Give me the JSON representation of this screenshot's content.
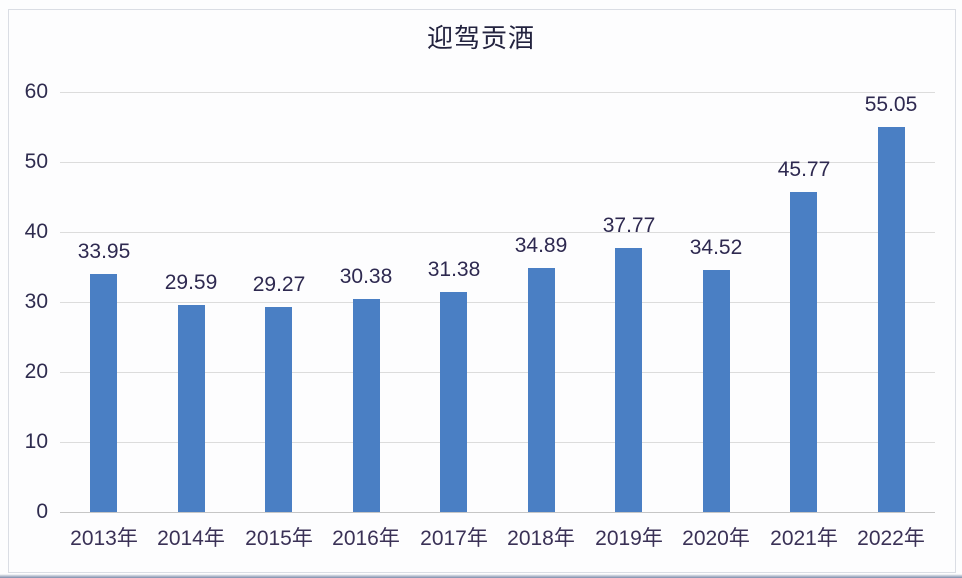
{
  "chart_data": {
    "type": "bar",
    "title": "迎驾贡酒",
    "categories": [
      "2013年",
      "2014年",
      "2015年",
      "2016年",
      "2017年",
      "2018年",
      "2019年",
      "2020年",
      "2021年",
      "2022年"
    ],
    "values": [
      33.95,
      29.59,
      29.27,
      30.38,
      31.38,
      34.89,
      37.77,
      34.52,
      45.77,
      55.05
    ],
    "value_labels": [
      "33.95",
      "29.59",
      "29.27",
      "30.38",
      "31.38",
      "34.89",
      "37.77",
      "34.52",
      "45.77",
      "55.05"
    ],
    "ylim": [
      0,
      60
    ],
    "ytick_step": 10,
    "ytick_labels": [
      "0",
      "10",
      "20",
      "30",
      "40",
      "50",
      "60"
    ],
    "grid": true,
    "legend_position": "none",
    "bar_color": "#4a7fc4",
    "title_color": "#23233f",
    "axis_label_color": "#2f2c4f",
    "data_label_color": "#2e2950",
    "gridline_color": "#dcdcdc",
    "axis_line_color": "#c6c6c6"
  },
  "frame": {
    "border_color": "#dadde4",
    "bottom_edge_color": "#7e8cab"
  }
}
